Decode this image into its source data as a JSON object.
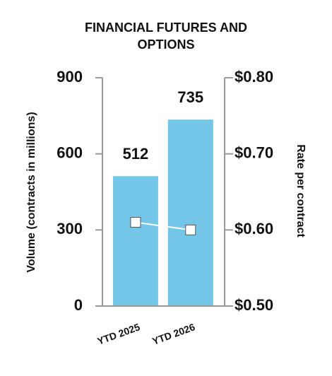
{
  "chart_data": {
    "type": "bar",
    "title": "FINANCIAL FUTURES AND OPTIONS",
    "y_label": "Volume (contracts in millions)",
    "y2_label": "Rate per contract",
    "categories": [
      "YTD 2025",
      "YTD 2026"
    ],
    "series": [
      {
        "name": "Volume",
        "type": "bar",
        "color": "#74c6e8",
        "values": [
          512,
          735
        ]
      },
      {
        "name": "Rate per contract",
        "type": "line",
        "axis": "y2",
        "color": "#ffffff",
        "values": [
          0.61,
          0.6
        ]
      }
    ],
    "ylim": [
      0,
      900
    ],
    "yticks": [
      0,
      300,
      600,
      900
    ],
    "y2lim": [
      0.5,
      0.8
    ],
    "y2ticks": [
      {
        "value": 0.5,
        "label": "$0.50"
      },
      {
        "value": 0.6,
        "label": "$0.60"
      },
      {
        "value": 0.7,
        "label": "$0.70"
      },
      {
        "value": 0.8,
        "label": "$0.80"
      }
    ]
  }
}
